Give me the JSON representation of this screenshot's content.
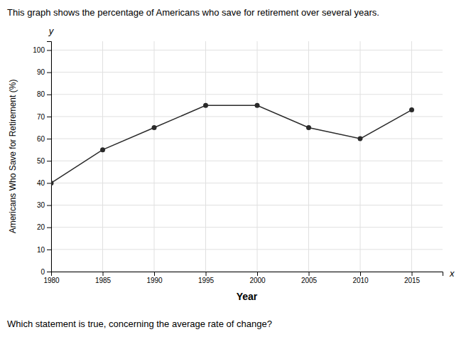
{
  "chart_data": {
    "type": "line",
    "title": "This graph shows the percentage of Americans who save for retirement over several years.",
    "xlabel": "Year",
    "ylabel": "Americans Who Save for Retirement (%)",
    "annotations": [
      "x",
      "y",
      "Which statement is true, concerning the average rate of change?"
    ],
    "x": [
      1980,
      1985,
      1990,
      1995,
      2000,
      2005,
      2010,
      2015
    ],
    "values": [
      40,
      55,
      65,
      75,
      75,
      65,
      60,
      73
    ],
    "color": "#2a2a2a",
    "marker": "circle",
    "xlim": [
      1980,
      2018
    ],
    "ylim": [
      0,
      104
    ],
    "xticks": [
      1980,
      1985,
      1990,
      1995,
      2000,
      2005,
      2010,
      2015
    ],
    "yticks": [
      0,
      10,
      20,
      30,
      40,
      50,
      60,
      70,
      80,
      90,
      100
    ],
    "grid": true
  }
}
